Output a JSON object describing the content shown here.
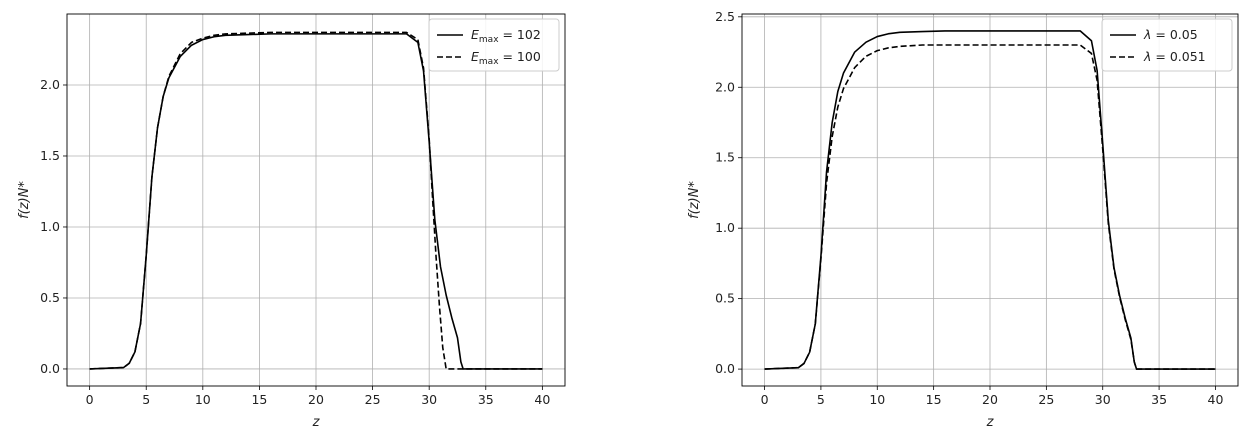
{
  "figure": {
    "background": "#ffffff",
    "line_color": "#000000",
    "grid_color": "#b0b0b0"
  },
  "chart_data": [
    {
      "type": "line",
      "xlabel": "z",
      "ylabel": "f(z)N*",
      "xlim": [
        -2,
        42
      ],
      "ylim": [
        -0.12,
        2.5
      ],
      "xticks": [
        0,
        5,
        10,
        15,
        20,
        25,
        30,
        35,
        40
      ],
      "yticks": [
        0.0,
        0.5,
        1.0,
        1.5,
        2.0
      ],
      "xtick_labels": [
        "0",
        "5",
        "10",
        "15",
        "20",
        "25",
        "30",
        "35",
        "40"
      ],
      "ytick_labels": [
        "0.0",
        "0.5",
        "1.0",
        "1.5",
        "2.0"
      ],
      "grid": true,
      "legend_position": "top-right",
      "series": [
        {
          "name": "E_max = 102",
          "label_main": "E",
          "label_sub": "max",
          "label_rest": " = 102",
          "style": "solid",
          "x": [
            0,
            3,
            3.5,
            4,
            4.5,
            5,
            5.5,
            6,
            6.5,
            7,
            8,
            9,
            10,
            11,
            12,
            14,
            16,
            20,
            24,
            28,
            29,
            29.5,
            30,
            30.5,
            31,
            31.5,
            32,
            32.5,
            32.8,
            33,
            40
          ],
          "y": [
            0,
            0.01,
            0.04,
            0.12,
            0.32,
            0.8,
            1.35,
            1.7,
            1.92,
            2.05,
            2.2,
            2.28,
            2.32,
            2.34,
            2.35,
            2.355,
            2.36,
            2.36,
            2.36,
            2.36,
            2.3,
            2.1,
            1.6,
            1.05,
            0.72,
            0.52,
            0.36,
            0.22,
            0.05,
            0,
            0
          ]
        },
        {
          "name": "E_max = 100",
          "label_main": "E",
          "label_sub": "max",
          "label_rest": " = 100",
          "style": "dashed",
          "x": [
            0,
            3,
            3.5,
            4,
            4.5,
            5,
            5.5,
            6,
            6.5,
            7,
            8,
            9,
            10,
            11,
            12,
            14,
            16,
            20,
            24,
            28,
            29,
            29.5,
            30,
            30.3,
            30.6,
            30.9,
            31.2,
            31.5,
            40
          ],
          "y": [
            0,
            0.01,
            0.04,
            0.12,
            0.32,
            0.8,
            1.35,
            1.7,
            1.92,
            2.06,
            2.22,
            2.3,
            2.33,
            2.35,
            2.36,
            2.365,
            2.37,
            2.37,
            2.37,
            2.37,
            2.32,
            2.12,
            1.62,
            1.2,
            0.8,
            0.45,
            0.15,
            0,
            0
          ]
        }
      ]
    },
    {
      "type": "line",
      "xlabel": "z",
      "ylabel": "f(z)N*",
      "xlim": [
        -2,
        42
      ],
      "ylim": [
        -0.12,
        2.52
      ],
      "xticks": [
        0,
        5,
        10,
        15,
        20,
        25,
        30,
        35,
        40
      ],
      "yticks": [
        0.0,
        0.5,
        1.0,
        1.5,
        2.0,
        2.5
      ],
      "xtick_labels": [
        "0",
        "5",
        "10",
        "15",
        "20",
        "25",
        "30",
        "35",
        "40"
      ],
      "ytick_labels": [
        "0.0",
        "0.5",
        "1.0",
        "1.5",
        "2.0",
        "2.5"
      ],
      "grid": true,
      "legend_position": "top-right",
      "series": [
        {
          "name": "λ = 0.05",
          "label_main": "λ",
          "label_sub": "",
          "label_rest": " = 0.05",
          "style": "solid",
          "x": [
            0,
            3,
            3.5,
            4,
            4.5,
            5,
            5.5,
            6,
            6.5,
            7,
            8,
            9,
            10,
            11,
            12,
            14,
            16,
            20,
            24,
            28,
            29,
            29.5,
            30,
            30.5,
            31,
            31.5,
            32,
            32.5,
            32.8,
            33,
            40
          ],
          "y": [
            0,
            0.01,
            0.04,
            0.12,
            0.32,
            0.8,
            1.4,
            1.75,
            1.97,
            2.1,
            2.25,
            2.32,
            2.36,
            2.38,
            2.39,
            2.395,
            2.4,
            2.4,
            2.4,
            2.4,
            2.33,
            2.12,
            1.6,
            1.05,
            0.72,
            0.52,
            0.36,
            0.22,
            0.05,
            0,
            0
          ]
        },
        {
          "name": "λ = 0.051",
          "label_main": "λ",
          "label_sub": "",
          "label_rest": " = 0.051",
          "style": "dashed",
          "x": [
            0,
            3,
            3.5,
            4,
            4.5,
            5,
            5.5,
            6,
            6.5,
            7,
            8,
            9,
            10,
            11,
            12,
            14,
            16,
            20,
            24,
            28,
            29,
            29.5,
            30,
            30.5,
            31,
            31.5,
            32,
            32.5,
            32.8,
            33,
            40
          ],
          "y": [
            0,
            0.01,
            0.04,
            0.12,
            0.32,
            0.78,
            1.32,
            1.65,
            1.86,
            1.99,
            2.14,
            2.22,
            2.26,
            2.28,
            2.29,
            2.3,
            2.3,
            2.3,
            2.3,
            2.3,
            2.24,
            2.05,
            1.56,
            1.03,
            0.71,
            0.51,
            0.35,
            0.21,
            0.05,
            0,
            0
          ]
        }
      ]
    }
  ]
}
